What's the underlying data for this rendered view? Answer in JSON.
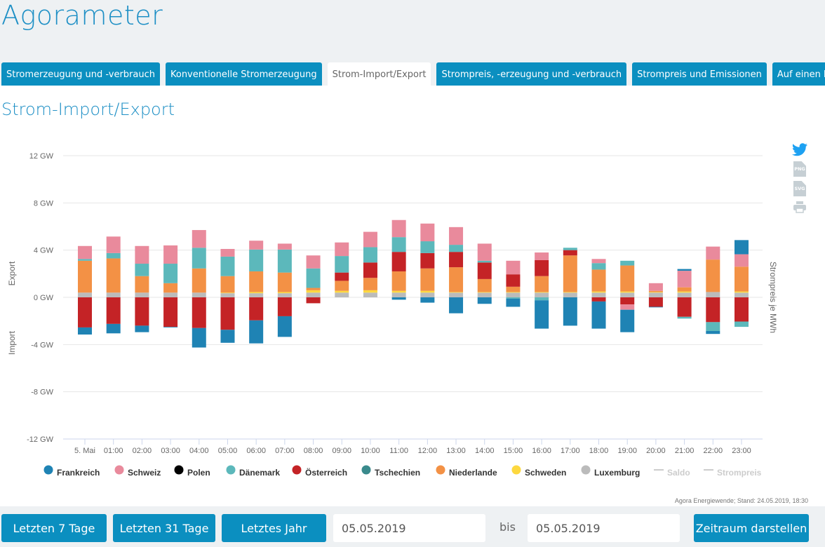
{
  "app": {
    "title": "Agorameter"
  },
  "tabs": [
    {
      "label": "Stromerzeugung und -verbrauch",
      "active": false
    },
    {
      "label": "Konventionelle Stromerzeugung",
      "active": false
    },
    {
      "label": "Strom-Import/Export",
      "active": true
    },
    {
      "label": "Strompreis, -erzeugung und -verbrauch",
      "active": false
    },
    {
      "label": "Strompreis und Emissionen",
      "active": false
    },
    {
      "label": "Auf einen Blick",
      "active": false
    }
  ],
  "section_title": "Strom-Import/Export",
  "side_icons": [
    {
      "name": "twitter-icon",
      "label": ""
    },
    {
      "name": "png-download-icon",
      "label": "PNG"
    },
    {
      "name": "svg-download-icon",
      "label": "SVG"
    },
    {
      "name": "print-icon",
      "label": ""
    }
  ],
  "chart_data": {
    "type": "bar",
    "stacked": true,
    "title": "Strom-Import/Export",
    "ylabel_top": "Export",
    "ylabel_bottom": "Import",
    "ylabel_right": "Strompreis je MWh",
    "ylim": [
      -12,
      12
    ],
    "yticks": [
      12,
      8,
      4,
      0,
      -4,
      -8,
      -12
    ],
    "ytick_labels": [
      "12 GW",
      "8 GW",
      "4 GW",
      "0 GW",
      "-4 GW",
      "-8 GW",
      "-12 GW"
    ],
    "grid": true,
    "categories": [
      "5. Mai",
      "01:00",
      "02:00",
      "03:00",
      "04:00",
      "05:00",
      "06:00",
      "07:00",
      "08:00",
      "09:00",
      "10:00",
      "11:00",
      "12:00",
      "13:00",
      "14:00",
      "15:00",
      "16:00",
      "17:00",
      "18:00",
      "19:00",
      "20:00",
      "21:00",
      "22:00",
      "23:00"
    ],
    "legend_position": "bottom",
    "series": [
      {
        "name": "Frankreich",
        "color": "#1f83b4",
        "values": [
          -0.6,
          -0.8,
          -0.55,
          -0.05,
          -1.65,
          -1.1,
          -1.95,
          -1.75,
          0,
          0,
          0,
          -0.2,
          -0.45,
          -1.35,
          -0.55,
          -0.7,
          -2.4,
          -2.4,
          -2.3,
          -1.9,
          -0.05,
          0.15,
          -0.25,
          1.2
        ]
      },
      {
        "name": "Schweiz",
        "color": "#e98a9c",
        "values": [
          1.1,
          1.4,
          1.5,
          1.55,
          1.5,
          0.65,
          0.75,
          0.5,
          1.1,
          1.15,
          1.3,
          1.45,
          1.5,
          1.5,
          1.45,
          1.15,
          0.65,
          0,
          0.35,
          -0.45,
          0.65,
          1.4,
          1.1,
          1.05
        ]
      },
      {
        "name": "Polen",
        "color": "#000000",
        "values": [
          0,
          0,
          0,
          0,
          0,
          0,
          0,
          0,
          0,
          0,
          0,
          0,
          0,
          0,
          0,
          0,
          0,
          0,
          0,
          0,
          0,
          0,
          0,
          0
        ]
      },
      {
        "name": "Dänemark",
        "color": "#5cb8bb",
        "values": [
          0.15,
          0.45,
          1.05,
          1.65,
          1.75,
          1.65,
          1.85,
          1.95,
          1.65,
          1.4,
          1.3,
          1.25,
          1.0,
          0.6,
          0.15,
          -0.1,
          -0.25,
          0.2,
          0.55,
          0.4,
          0,
          -0.15,
          -0.75,
          -0.45
        ]
      },
      {
        "name": "Österreich",
        "color": "#c42326",
        "values": [
          -2.55,
          -2.25,
          -2.4,
          -2.5,
          -2.6,
          -2.75,
          -1.95,
          -1.6,
          -0.5,
          0.7,
          1.3,
          1.65,
          1.3,
          1.3,
          1.4,
          1.05,
          1.35,
          0.45,
          -0.35,
          -0.6,
          -0.8,
          -1.65,
          -2.1,
          -2.05
        ]
      },
      {
        "name": "Tschechien",
        "color": "#3a8a8c",
        "values": [
          0,
          0,
          0,
          0,
          0,
          0,
          0,
          0,
          0,
          0,
          0,
          0,
          0,
          0,
          0,
          0,
          0,
          0,
          0,
          0,
          0,
          0,
          0,
          0
        ]
      },
      {
        "name": "Niederlande",
        "color": "#f39145",
        "values": [
          2.7,
          2.9,
          1.4,
          0.8,
          2.05,
          1.4,
          1.75,
          1.65,
          0.2,
          0.85,
          1.05,
          1.65,
          1.9,
          2.1,
          1.1,
          0.45,
          1.35,
          3.1,
          1.85,
          2.2,
          0.1,
          0.35,
          2.75,
          2.1
        ]
      },
      {
        "name": "Schweden",
        "color": "#fdd83f",
        "values": [
          0,
          0,
          0,
          0,
          0,
          0.05,
          0.1,
          0.1,
          0.2,
          0.15,
          0.2,
          0.15,
          0.15,
          0.05,
          0.05,
          0.05,
          0.05,
          0.05,
          0.1,
          0.1,
          0.05,
          0.1,
          0,
          0.1
        ]
      },
      {
        "name": "Luxemburg",
        "color": "#bbbbbb",
        "values": [
          0.4,
          0.4,
          0.4,
          0.4,
          0.4,
          0.35,
          0.35,
          0.35,
          0.4,
          0.4,
          0.4,
          0.4,
          0.4,
          0.4,
          0.4,
          0.4,
          0.4,
          0.4,
          0.4,
          0.4,
          0.4,
          0.4,
          0.45,
          0.4
        ]
      }
    ],
    "legend_extra": [
      {
        "name": "Saldo",
        "type": "line",
        "color": "#cccccc",
        "hidden": true
      },
      {
        "name": "Strompreis",
        "type": "line",
        "color": "#cccccc",
        "hidden": true
      }
    ],
    "stack_order_positive": [
      "Luxemburg",
      "Schweden",
      "Niederlande",
      "Tschechien",
      "Österreich",
      "Dänemark",
      "Polen",
      "Schweiz",
      "Frankreich"
    ],
    "stack_order_negative": [
      "Luxemburg",
      "Schweden",
      "Niederlande",
      "Tschechien",
      "Österreich",
      "Schweiz",
      "Dänemark",
      "Polen",
      "Frankreich"
    ]
  },
  "credit": "Agora Energiewende; Stand: 24.05.2019, 18:30",
  "controls": {
    "btn_7": "Letzten 7 Tage",
    "btn_31": "Letzten 31 Tage",
    "btn_year": "Letztes Jahr",
    "from_date": "05.05.2019",
    "bis": "bis",
    "to_date": "05.05.2019",
    "submit": "Zeitraum darstellen"
  }
}
